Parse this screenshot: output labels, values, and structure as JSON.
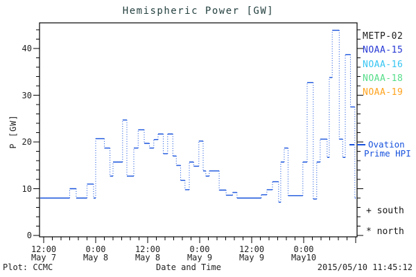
{
  "title": "Hemispheric Power [GW]",
  "axes": {
    "y_label": "P [GW]",
    "x_label": "Date and Time"
  },
  "footer": {
    "credit": "Plot: CCMC",
    "timestamp": "2015/05/10 11:45:12"
  },
  "legend": {
    "satellites": [
      {
        "label": "METP-02",
        "color": "#1a1a1a"
      },
      {
        "label": "NOAA-15",
        "color": "#2638d4"
      },
      {
        "label": "NOAA-16",
        "color": "#35c5f2"
      },
      {
        "label": "NOAA-18",
        "color": "#55dd88"
      },
      {
        "label": "NOAA-19",
        "color": "#ffa21c"
      }
    ],
    "hpi": {
      "line1": "Ovation",
      "line2": "Prime HPI",
      "color": "#1550dc"
    },
    "south": "+ south",
    "north": "* north"
  },
  "colors": {
    "line": "#1550dc",
    "frame": "#000000"
  },
  "chart_data": {
    "type": "line",
    "step": true,
    "series_name": "Ovation Prime HPI",
    "title": "Hemispheric Power [GW]",
    "xlabel": "Date and Time",
    "ylabel": "P [GW]",
    "x_unit": "hours since 2015 May 7 12:00",
    "xlim": [
      -0.96,
      72.3
    ],
    "ylim": [
      0,
      45.5
    ],
    "y_major_ticks": [
      0,
      10,
      20,
      30,
      40
    ],
    "y_minor_step": 2,
    "x_major_step_hours": 12,
    "x_minor_step_hours": 2,
    "x_tick_labels": [
      {
        "time": "12:00",
        "date": "May 7"
      },
      {
        "time": "0:00",
        "date": "May 8"
      },
      {
        "time": "12:00",
        "date": "May 8"
      },
      {
        "time": "0:00",
        "date": "May 9"
      },
      {
        "time": "12:00",
        "date": "May 9"
      },
      {
        "time": "0:00",
        "date": "May10"
      }
    ],
    "points": [
      [
        -0.8,
        8
      ],
      [
        6,
        10
      ],
      [
        7.5,
        8
      ],
      [
        10,
        11
      ],
      [
        11.5,
        8
      ],
      [
        12,
        20.7
      ],
      [
        14,
        18.7
      ],
      [
        15.3,
        12.7
      ],
      [
        16,
        15.7
      ],
      [
        18.2,
        24.7
      ],
      [
        19.2,
        12.7
      ],
      [
        20.8,
        18.7
      ],
      [
        21.8,
        22.6
      ],
      [
        23.2,
        19.7
      ],
      [
        24.4,
        18.7
      ],
      [
        25.4,
        20.5
      ],
      [
        26.4,
        21.7
      ],
      [
        27.6,
        17.5
      ],
      [
        28.6,
        21.7
      ],
      [
        29.8,
        17
      ],
      [
        30.6,
        15
      ],
      [
        31.6,
        11.8
      ],
      [
        32.6,
        9.8
      ],
      [
        33.6,
        15.7
      ],
      [
        34.6,
        14.8
      ],
      [
        35.8,
        20.2
      ],
      [
        36.8,
        13.8
      ],
      [
        37.4,
        12.7
      ],
      [
        38.2,
        13.8
      ],
      [
        40.5,
        9.7
      ],
      [
        42.1,
        8.6
      ],
      [
        43.6,
        9.2
      ],
      [
        44.6,
        8
      ],
      [
        50.2,
        8.7
      ],
      [
        51.5,
        9.8
      ],
      [
        52.8,
        11.5
      ],
      [
        54.2,
        7.1
      ],
      [
        54.7,
        15.7
      ],
      [
        55.5,
        18.7
      ],
      [
        56.4,
        8.5
      ],
      [
        59.8,
        15.7
      ],
      [
        60.8,
        32.7
      ],
      [
        62.2,
        7.8
      ],
      [
        63,
        15.7
      ],
      [
        63.8,
        20.6
      ],
      [
        65.4,
        16.7
      ],
      [
        65.9,
        33.8
      ],
      [
        66.6,
        43.9
      ],
      [
        68.2,
        20.6
      ],
      [
        69,
        16.7
      ],
      [
        69.6,
        38.7
      ],
      [
        70.8,
        27.5
      ],
      [
        71.8,
        8
      ],
      [
        72,
        8
      ]
    ]
  }
}
